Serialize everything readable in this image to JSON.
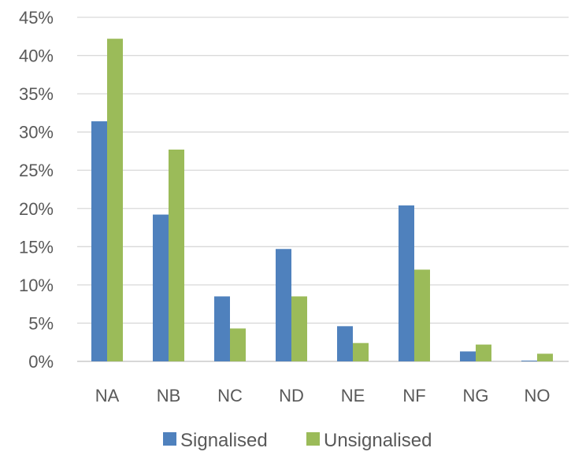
{
  "chart_data": {
    "type": "bar",
    "categories": [
      "NA",
      "NB",
      "NC",
      "ND",
      "NE",
      "NF",
      "NG",
      "NO"
    ],
    "series": [
      {
        "name": "Signalised",
        "color": "#4F81BD",
        "values": [
          31.4,
          19.2,
          8.5,
          14.7,
          4.6,
          20.4,
          1.3,
          0.1
        ]
      },
      {
        "name": "Unsignalised",
        "color": "#9BBB59",
        "values": [
          42.2,
          27.7,
          4.3,
          8.5,
          2.4,
          12.0,
          2.2,
          1.0
        ]
      }
    ],
    "yticks": [
      "0%",
      "5%",
      "10%",
      "15%",
      "20%",
      "25%",
      "30%",
      "35%",
      "40%",
      "45%"
    ],
    "ylim": [
      0,
      45
    ],
    "grid": true,
    "legend": "bottom-center"
  }
}
